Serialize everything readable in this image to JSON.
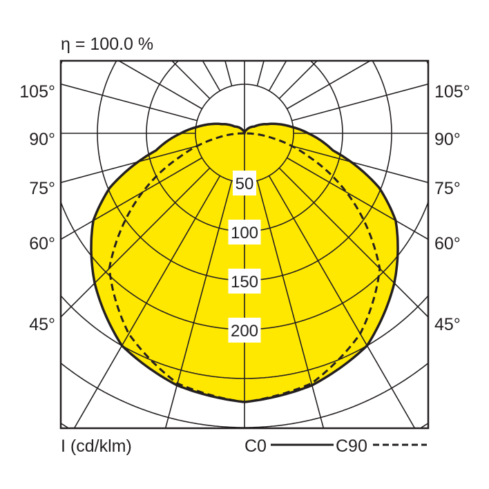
{
  "chart_data": {
    "type": "polar",
    "title": "η = 100.0 %",
    "unit_label": "I (cd/klm)",
    "radial_ticks": [
      50,
      100,
      150,
      200
    ],
    "radial_grid": [
      50,
      100,
      150,
      200,
      250,
      300,
      350,
      400
    ],
    "angle_step_deg": 15,
    "angle_labels": [
      "105°",
      "90°",
      "75°",
      "60°",
      "45°"
    ],
    "fill_color": "#FFE800",
    "series": [
      {
        "name": "C0",
        "style": "solid",
        "gamma": [
          0,
          15,
          30,
          45,
          60,
          68,
          79,
          90,
          98,
          105,
          112,
          125,
          150,
          180
        ],
        "values": [
          274,
          266,
          250,
          216,
          178,
          148,
          92,
          65,
          48,
          36,
          25,
          12,
          4,
          0
        ]
      },
      {
        "name": "C90",
        "style": "dashed",
        "gamma": [
          0,
          15,
          30,
          45,
          60,
          70,
          80,
          90
        ],
        "values": [
          274,
          264,
          236,
          195,
          120,
          70,
          30,
          0
        ]
      }
    ],
    "legend": {
      "c0": "C0",
      "c90": "C90",
      "placement": "bottom-right"
    }
  }
}
